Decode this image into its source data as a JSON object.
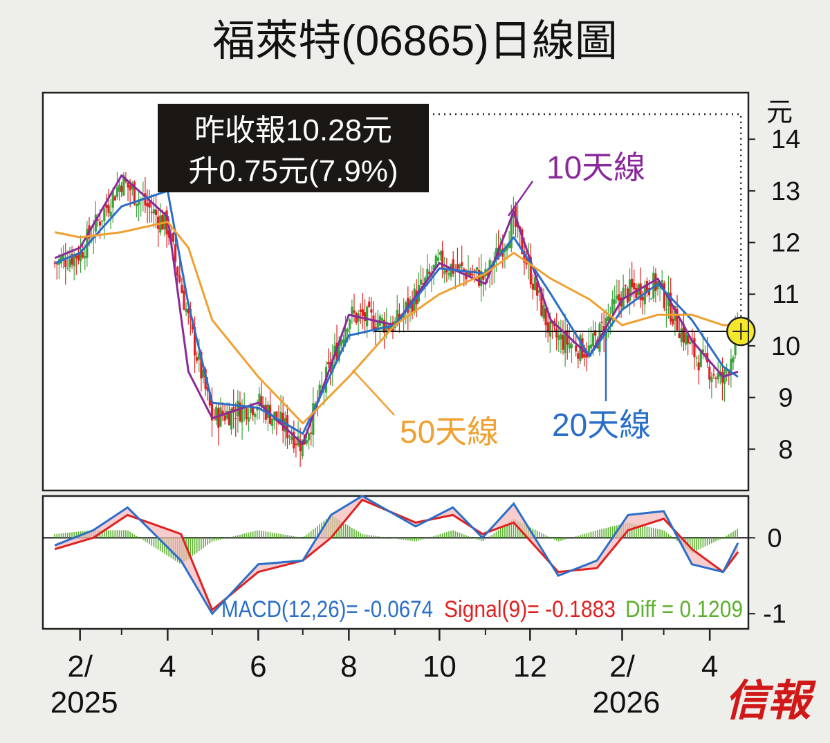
{
  "title": "福萊特(06865)日線圖",
  "price_panel": {
    "unit": "元",
    "y_ticks": [
      "14",
      "13",
      "12",
      "11",
      "10",
      "9",
      "8"
    ],
    "info_line1": "昨收報10.28元",
    "info_line2": "升0.75元(7.9%)"
  },
  "macd_panel": {
    "y_ticks": [
      "0",
      "-1"
    ],
    "macd_label": "MACD(12,26)= -0.0674",
    "signal_label": "Signal(9)= -0.1883",
    "diff_label": "Diff = 0.1209"
  },
  "x_ticks": [
    "2/",
    "4",
    "6",
    "8",
    "10",
    "12",
    "2/",
    "4"
  ],
  "x_years": [
    "2025",
    "2026"
  ],
  "logo": "信報",
  "colors": {
    "background": "#eeeeea",
    "candle_up": "#3aa33a",
    "candle_down": "#e02020",
    "ma10": "#8a2a9a",
    "ma20": "#2a6ec8",
    "ma50": "#f0a030",
    "macd": "#2a6ec8",
    "signal": "#e02020",
    "diff": "#5cb030",
    "marker": "#f5e82a",
    "logo": "#d01818"
  },
  "chart_data": [
    {
      "type": "line",
      "subtype": "candlestick_with_moving_averages",
      "title": "福萊特(06865)日線圖",
      "ylabel": "元",
      "ylim": [
        7.2,
        14.9
      ],
      "x": [
        "2025-01-15",
        "2025-02-01",
        "2025-03-01",
        "2025-04-01",
        "2025-04-15",
        "2025-05-01",
        "2025-06-01",
        "2025-07-01",
        "2025-08-01",
        "2025-09-01",
        "2025-10-01",
        "2025-11-01",
        "2025-11-20",
        "2025-12-15",
        "2026-01-10",
        "2026-02-01",
        "2026-02-25",
        "2026-03-20",
        "2026-04-10",
        "2026-04-20"
      ],
      "close_approx": [
        11.6,
        11.8,
        13.2,
        12.3,
        10.5,
        8.6,
        8.9,
        8.1,
        10.6,
        10.4,
        11.6,
        11.3,
        12.4,
        10.2,
        9.9,
        11.0,
        11.2,
        9.9,
        9.3,
        10.28
      ],
      "series": [
        {
          "name": "10天線",
          "values": [
            11.7,
            11.9,
            13.3,
            12.5,
            9.5,
            8.6,
            8.9,
            8.1,
            10.6,
            10.4,
            11.6,
            11.2,
            12.6,
            10.5,
            9.8,
            10.9,
            11.3,
            10.1,
            9.4,
            9.5
          ]
        },
        {
          "name": "20天線",
          "values": [
            11.6,
            11.8,
            12.7,
            13.0,
            10.8,
            8.9,
            8.8,
            8.3,
            10.2,
            10.4,
            11.5,
            11.4,
            12.1,
            11.0,
            9.8,
            10.7,
            11.2,
            10.5,
            9.6,
            9.4
          ]
        },
        {
          "name": "50天線",
          "values": [
            12.2,
            12.1,
            12.2,
            12.4,
            11.9,
            10.5,
            9.4,
            8.5,
            9.4,
            10.4,
            11.0,
            11.4,
            11.8,
            11.3,
            10.9,
            10.4,
            10.6,
            10.6,
            10.4,
            10.4
          ]
        }
      ],
      "annotations": [
        {
          "text": "昨收報10.28元"
        },
        {
          "text": "升0.75元(7.9%)"
        }
      ],
      "reference_line": 10.28
    },
    {
      "type": "line",
      "subtype": "macd",
      "ylim": [
        -1.2,
        0.55
      ],
      "x": [
        "2025-01-15",
        "2025-02-10",
        "2025-03-05",
        "2025-04-10",
        "2025-05-01",
        "2025-06-01",
        "2025-07-01",
        "2025-07-20",
        "2025-08-10",
        "2025-09-15",
        "2025-10-10",
        "2025-10-30",
        "2025-11-20",
        "2025-12-20",
        "2026-01-15",
        "2026-02-05",
        "2026-03-01",
        "2026-03-20",
        "2026-04-10",
        "2026-04-20"
      ],
      "series": [
        {
          "name": "MACD(12,26)",
          "values": [
            -0.1,
            0.1,
            0.4,
            -0.3,
            -1.0,
            -0.35,
            -0.3,
            0.3,
            0.55,
            0.15,
            0.4,
            0.0,
            0.45,
            -0.5,
            -0.3,
            0.3,
            0.35,
            -0.35,
            -0.45,
            -0.0674
          ]
        },
        {
          "name": "Signal(9)",
          "values": [
            -0.15,
            0.0,
            0.3,
            0.05,
            -0.95,
            -0.45,
            -0.3,
            0.0,
            0.5,
            0.2,
            0.3,
            0.05,
            0.2,
            -0.45,
            -0.4,
            0.1,
            0.25,
            -0.15,
            -0.45,
            -0.1883
          ]
        },
        {
          "name": "Diff",
          "values": [
            0.05,
            0.1,
            0.1,
            -0.35,
            -0.05,
            0.1,
            0.0,
            0.3,
            0.05,
            -0.05,
            0.1,
            -0.05,
            0.25,
            -0.05,
            0.1,
            0.2,
            0.1,
            -0.2,
            0.0,
            0.1209
          ]
        }
      ],
      "last_values": {
        "MACD": -0.0674,
        "Signal": -0.1883,
        "Diff": 0.1209
      }
    }
  ]
}
